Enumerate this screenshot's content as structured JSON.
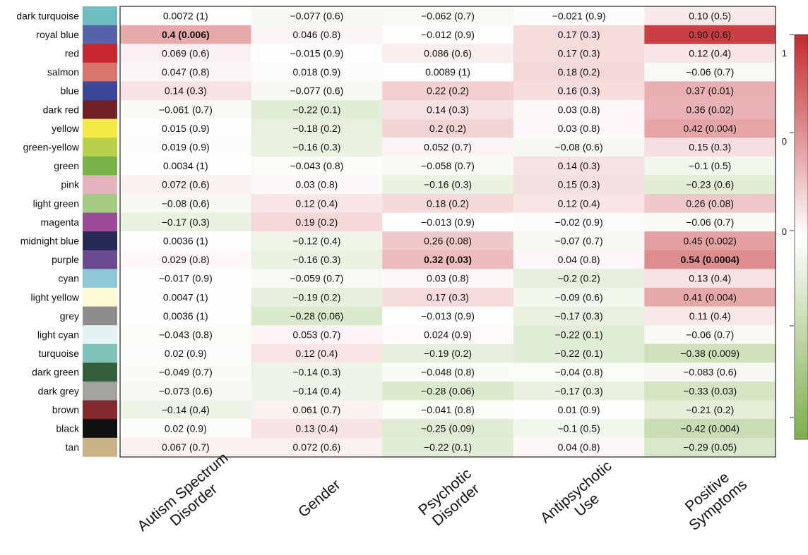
{
  "chart_data": {
    "type": "heatmap",
    "title": "",
    "xlabel": "",
    "ylabel": "",
    "columns": [
      {
        "label": "Autism Spectrum Disorder",
        "lines": [
          "Autism Spectrum",
          "Disorder"
        ]
      },
      {
        "label": "Gender",
        "lines": [
          "Gender"
        ]
      },
      {
        "label": "Psychotic Disorder",
        "lines": [
          "Psychotic",
          "Disorder"
        ]
      },
      {
        "label": "Antipsychotic Use",
        "lines": [
          "Antipsychotic",
          "Use"
        ]
      },
      {
        "label": "Positive Symptoms",
        "lines": [
          "Positive",
          "Symptoms"
        ]
      }
    ],
    "rows": [
      {
        "module": "dark turquoise",
        "color": "#6FBDC2",
        "cells": [
          {
            "r": 0.0072,
            "text": "0.0072 (1)"
          },
          {
            "r": -0.077,
            "text": "−0.077 (0.6)"
          },
          {
            "r": -0.062,
            "text": "−0.062 (0.7)"
          },
          {
            "r": -0.021,
            "text": "−0.021 (0.9)"
          },
          {
            "r": 0.1,
            "text": "0.10 (0.5)"
          }
        ]
      },
      {
        "module": "royal blue",
        "color": "#5663A9",
        "cells": [
          {
            "r": 0.4,
            "text": "0.4 (0.006)",
            "bold": true
          },
          {
            "r": 0.046,
            "text": "0.046 (0.8)"
          },
          {
            "r": -0.012,
            "text": "−0.012 (0.9)"
          },
          {
            "r": 0.17,
            "text": "0.17 (0.3)"
          },
          {
            "r": 0.9,
            "text": "0.90 (0.6)"
          }
        ]
      },
      {
        "module": "red",
        "color": "#C8262E",
        "cells": [
          {
            "r": 0.069,
            "text": "0.069 (0.6)"
          },
          {
            "r": -0.015,
            "text": "−0.015 (0.9)"
          },
          {
            "r": 0.086,
            "text": "0.086 (0.6)"
          },
          {
            "r": 0.17,
            "text": "0.17 (0.3)"
          },
          {
            "r": 0.12,
            "text": "0.12 (0.4)"
          }
        ]
      },
      {
        "module": "salmon",
        "color": "#D9756A",
        "cells": [
          {
            "r": 0.047,
            "text": "0.047 (0.8)"
          },
          {
            "r": 0.018,
            "text": "0.018 (0.9)"
          },
          {
            "r": 0.0089,
            "text": "0.0089 (1)"
          },
          {
            "r": 0.18,
            "text": "0.18 (0.2)"
          },
          {
            "r": -0.06,
            "text": "−0.06 (0.7)"
          }
        ]
      },
      {
        "module": "blue",
        "color": "#3A4796",
        "cells": [
          {
            "r": 0.14,
            "text": "0.14 (0.3)"
          },
          {
            "r": -0.077,
            "text": "−0.077 (0.6)"
          },
          {
            "r": 0.22,
            "text": "0.22 (0.2)"
          },
          {
            "r": 0.16,
            "text": "0.16 (0.3)"
          },
          {
            "r": 0.37,
            "text": "0.37 (0.01)"
          }
        ]
      },
      {
        "module": "dark red",
        "color": "#6F2126",
        "cells": [
          {
            "r": -0.061,
            "text": "−0.061 (0.7)"
          },
          {
            "r": -0.22,
            "text": "−0.22 (0.1)"
          },
          {
            "r": 0.14,
            "text": "0.14 (0.3)"
          },
          {
            "r": 0.03,
            "text": "0.03 (0.8)"
          },
          {
            "r": 0.36,
            "text": "0.36 (0.02)"
          }
        ]
      },
      {
        "module": "yellow",
        "color": "#F2E944",
        "cells": [
          {
            "r": 0.015,
            "text": "0.015 (0.9)"
          },
          {
            "r": -0.18,
            "text": "−0.18 (0.2)"
          },
          {
            "r": 0.2,
            "text": "0.2 (0.2)"
          },
          {
            "r": 0.03,
            "text": "0.03 (0.8)"
          },
          {
            "r": 0.42,
            "text": "0.42 (0.004)"
          }
        ]
      },
      {
        "module": "green-yellow",
        "color": "#B9D04A",
        "cells": [
          {
            "r": 0.019,
            "text": "0.019 (0.9)"
          },
          {
            "r": -0.16,
            "text": "−0.16 (0.3)"
          },
          {
            "r": 0.052,
            "text": "0.052 (0.7)"
          },
          {
            "r": -0.08,
            "text": "−0.08 (0.6)"
          },
          {
            "r": 0.15,
            "text": "0.15 (0.3)"
          }
        ]
      },
      {
        "module": "green",
        "color": "#7AB349",
        "cells": [
          {
            "r": 0.0034,
            "text": "0.0034 (1)"
          },
          {
            "r": -0.043,
            "text": "−0.043 (0.8)"
          },
          {
            "r": -0.058,
            "text": "−0.058 (0.7)"
          },
          {
            "r": 0.14,
            "text": "0.14 (0.3)"
          },
          {
            "r": -0.1,
            "text": "−0.1 (0.5)"
          }
        ]
      },
      {
        "module": "pink",
        "color": "#E4B3BE",
        "cells": [
          {
            "r": 0.072,
            "text": "0.072 (0.6)"
          },
          {
            "r": 0.03,
            "text": "0.03 (0.8)"
          },
          {
            "r": -0.16,
            "text": "−0.16 (0.3)"
          },
          {
            "r": 0.15,
            "text": "0.15 (0.3)"
          },
          {
            "r": -0.23,
            "text": "−0.23 (0.6)"
          }
        ]
      },
      {
        "module": "light green",
        "color": "#A5CA82",
        "cells": [
          {
            "r": -0.08,
            "text": "−0.08 (0.6)"
          },
          {
            "r": 0.12,
            "text": "0.12 (0.4)"
          },
          {
            "r": 0.18,
            "text": "0.18 (0.2)"
          },
          {
            "r": 0.12,
            "text": "0.12 (0.4)"
          },
          {
            "r": 0.26,
            "text": "0.26 (0.08)"
          }
        ]
      },
      {
        "module": "magenta",
        "color": "#9A4A97",
        "cells": [
          {
            "r": -0.17,
            "text": "−0.17 (0.3)"
          },
          {
            "r": 0.19,
            "text": "0.19 (0.2)"
          },
          {
            "r": -0.013,
            "text": "−0.013 (0.9)"
          },
          {
            "r": -0.02,
            "text": "−0.02 (0.9)"
          },
          {
            "r": -0.06,
            "text": "−0.06 (0.7)"
          }
        ]
      },
      {
        "module": "midnight blue",
        "color": "#262A55",
        "cells": [
          {
            "r": 0.0036,
            "text": "0.0036 (1)"
          },
          {
            "r": -0.12,
            "text": "−0.12 (0.4)"
          },
          {
            "r": 0.26,
            "text": "0.26 (0.08)"
          },
          {
            "r": -0.07,
            "text": "−0.07 (0.7)"
          },
          {
            "r": 0.45,
            "text": "0.45 (0.002)"
          }
        ]
      },
      {
        "module": "purple",
        "color": "#6B4A92",
        "cells": [
          {
            "r": 0.029,
            "text": "0.029 (0.8)"
          },
          {
            "r": -0.16,
            "text": "−0.16 (0.3)"
          },
          {
            "r": 0.32,
            "text": "0.32 (0.03)",
            "bold": true
          },
          {
            "r": 0.04,
            "text": "0.04 (0.8)"
          },
          {
            "r": 0.54,
            "text": "0.54 (0.0004)",
            "bold": true
          }
        ]
      },
      {
        "module": "cyan",
        "color": "#8FC7D6",
        "cells": [
          {
            "r": -0.017,
            "text": "−0.017 (0.9)"
          },
          {
            "r": -0.059,
            "text": "−0.059 (0.7)"
          },
          {
            "r": 0.03,
            "text": "0.03 (0.8)"
          },
          {
            "r": -0.2,
            "text": "−0.2 (0.2)"
          },
          {
            "r": 0.13,
            "text": "0.13 (0.4)"
          }
        ]
      },
      {
        "module": "light yellow",
        "color": "#FCF9D5",
        "cells": [
          {
            "r": 0.0047,
            "text": "0.0047 (1)"
          },
          {
            "r": -0.19,
            "text": "−0.19 (0.2)"
          },
          {
            "r": 0.17,
            "text": "0.17 (0.3)"
          },
          {
            "r": -0.09,
            "text": "−0.09 (0.6)"
          },
          {
            "r": 0.41,
            "text": "0.41 (0.004)"
          }
        ]
      },
      {
        "module": "grey",
        "color": "#8D8D8D",
        "cells": [
          {
            "r": 0.0036,
            "text": "0.0036 (1)"
          },
          {
            "r": -0.28,
            "text": "−0.28 (0.06)"
          },
          {
            "r": -0.013,
            "text": "−0.013 (0.9)"
          },
          {
            "r": -0.17,
            "text": "−0.17 (0.3)"
          },
          {
            "r": 0.11,
            "text": "0.11 (0.4)"
          }
        ]
      },
      {
        "module": "light cyan",
        "color": "#E5F2F4",
        "cells": [
          {
            "r": -0.043,
            "text": "−0.043 (0.8)"
          },
          {
            "r": 0.053,
            "text": "0.053 (0.7)"
          },
          {
            "r": 0.024,
            "text": "0.024 (0.9)"
          },
          {
            "r": -0.22,
            "text": "−0.22 (0.1)"
          },
          {
            "r": -0.06,
            "text": "−0.06 (0.7)"
          }
        ]
      },
      {
        "module": "turquoise",
        "color": "#7FC2B8",
        "cells": [
          {
            "r": 0.02,
            "text": "0.02 (0.9)"
          },
          {
            "r": 0.12,
            "text": "0.12 (0.4)"
          },
          {
            "r": -0.19,
            "text": "−0.19 (0.2)"
          },
          {
            "r": -0.22,
            "text": "−0.22 (0.1)"
          },
          {
            "r": -0.38,
            "text": "−0.38 (0.009)"
          }
        ]
      },
      {
        "module": "dark green",
        "color": "#355E3A",
        "cells": [
          {
            "r": -0.049,
            "text": "−0.049 (0.7)"
          },
          {
            "r": -0.14,
            "text": "−0.14 (0.3)"
          },
          {
            "r": -0.048,
            "text": "−0.048 (0.8)"
          },
          {
            "r": -0.04,
            "text": "−0.04 (0.8)"
          },
          {
            "r": -0.083,
            "text": "−0.083 (0.6)"
          }
        ]
      },
      {
        "module": "dark grey",
        "color": "#A3A3A0",
        "cells": [
          {
            "r": -0.073,
            "text": "−0.073 (0.6)"
          },
          {
            "r": -0.14,
            "text": "−0.14 (0.4)"
          },
          {
            "r": -0.28,
            "text": "−0.28 (0.06)"
          },
          {
            "r": -0.17,
            "text": "−0.17 (0.3)"
          },
          {
            "r": -0.33,
            "text": "−0.33 (0.03)"
          }
        ]
      },
      {
        "module": "brown",
        "color": "#86292F",
        "cells": [
          {
            "r": -0.14,
            "text": "−0.14 (0.4)"
          },
          {
            "r": 0.061,
            "text": "0.061 (0.7)"
          },
          {
            "r": -0.041,
            "text": "−0.041 (0.8)"
          },
          {
            "r": 0.01,
            "text": "0.01 (0.9)"
          },
          {
            "r": -0.21,
            "text": "−0.21 (0.2)"
          }
        ]
      },
      {
        "module": "black",
        "color": "#111111",
        "cells": [
          {
            "r": 0.02,
            "text": "0.02 (0.9)"
          },
          {
            "r": 0.13,
            "text": "0.13 (0.4)"
          },
          {
            "r": -0.25,
            "text": "−0.25 (0.09)"
          },
          {
            "r": -0.1,
            "text": "−0.1 (0.5)"
          },
          {
            "r": -0.42,
            "text": "−0.42 (0.004)"
          }
        ]
      },
      {
        "module": "tan",
        "color": "#C9B286",
        "cells": [
          {
            "r": 0.067,
            "text": "0.067 (0.7)"
          },
          {
            "r": 0.072,
            "text": "0.072 (0.6)"
          },
          {
            "r": -0.22,
            "text": "−0.22 (0.1)"
          },
          {
            "r": 0.04,
            "text": "0.04 (0.8)"
          },
          {
            "r": -0.29,
            "text": "−0.29 (0.05)"
          }
        ]
      }
    ],
    "colorscale": {
      "min": -1,
      "max": 1,
      "low": "#7DAF4A",
      "mid": "#FFFFFF",
      "high": "#C32A2E"
    },
    "legend": {
      "placement": "right",
      "tick_labels": [
        "1",
        "0",
        "0"
      ]
    }
  }
}
